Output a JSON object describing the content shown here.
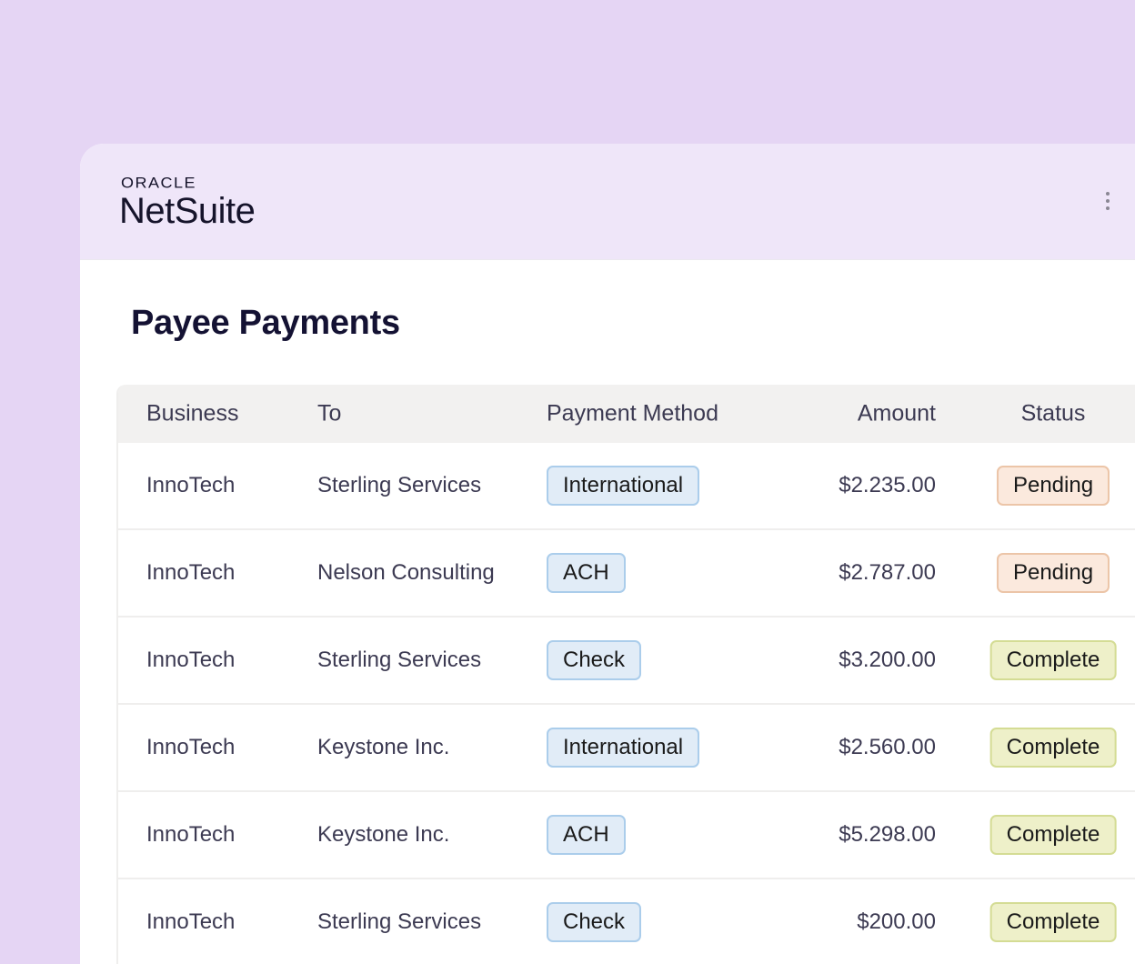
{
  "brand": {
    "oracle": "ORACLE",
    "product": "NetSuite"
  },
  "page_title": "Payee Payments",
  "table": {
    "headers": [
      "Business",
      "To",
      "Payment Method",
      "Amount",
      "Status"
    ],
    "rows": [
      {
        "business": "InnoTech",
        "to": "Sterling Services",
        "method": "International",
        "amount": "$2.235.00",
        "status": "Pending"
      },
      {
        "business": "InnoTech",
        "to": "Nelson Consulting",
        "method": "ACH",
        "amount": "$2.787.00",
        "status": "Pending"
      },
      {
        "business": "InnoTech",
        "to": "Sterling Services",
        "method": "Check",
        "amount": "$3.200.00",
        "status": "Complete"
      },
      {
        "business": "InnoTech",
        "to": "Keystone Inc.",
        "method": "International",
        "amount": "$2.560.00",
        "status": "Complete"
      },
      {
        "business": "InnoTech",
        "to": "Keystone Inc.",
        "method": "ACH",
        "amount": "$5.298.00",
        "status": "Complete"
      },
      {
        "business": "InnoTech",
        "to": "Sterling Services",
        "method": "Check",
        "amount": "$200.00",
        "status": "Complete"
      }
    ]
  },
  "colors": {
    "background": "#e5d5f4",
    "header": "#efe6f9",
    "method_badge": "#e1ecf7",
    "pending_badge": "#fbe9dd",
    "complete_badge": "#eef0c9"
  },
  "icons": {
    "menu": "kebab-menu-icon"
  }
}
